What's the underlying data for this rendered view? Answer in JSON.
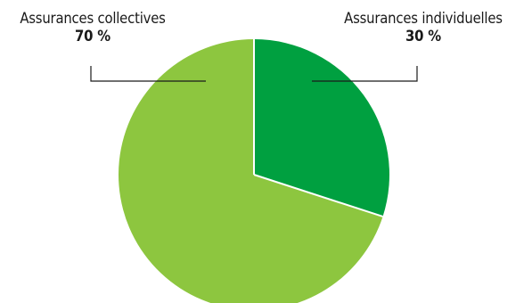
{
  "chart_data": {
    "type": "pie",
    "slices": [
      {
        "label": "Assurances individuelles",
        "value": 30,
        "display": "30 %",
        "color": "#00a040"
      },
      {
        "label": "Assurances collectives",
        "value": 70,
        "display": "70 %",
        "color": "#8dc63f"
      }
    ],
    "start_angle_deg": 0,
    "direction": "clockwise"
  }
}
